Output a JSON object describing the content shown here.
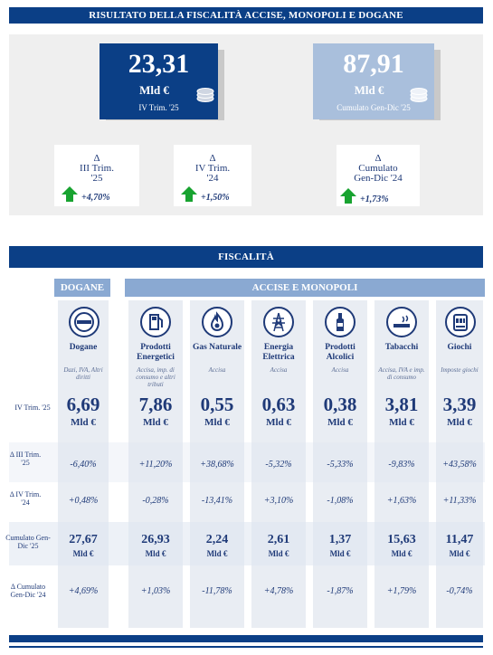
{
  "top_banner": "RISULTATO DELLA FISCALITÀ ACCISE, MONOPOLI E DOGANE",
  "card_quarter": {
    "value": "23,31",
    "unit": "Mld €",
    "period": "IV Trim. '25"
  },
  "card_cumulative": {
    "value": "87,91",
    "unit": "Mld €",
    "period": "Cumulato Gen-Dic '25"
  },
  "deltas": [
    {
      "symbol": "Δ",
      "label": "III Trim. '25",
      "value": "+4,70%"
    },
    {
      "symbol": "Δ",
      "label": "IV Trim. '24",
      "value": "+1,50%"
    },
    {
      "symbol": "Δ",
      "label": "Cumulato Gen-Dic '24",
      "value": "+1,73%"
    }
  ],
  "fiscalita_banner": "FISCALITÀ",
  "tab_dogane": "DOGANE",
  "tab_accise": "ACCISE E MONOPOLI",
  "row_labels": {
    "r1": "IV Trim. '25",
    "r2": "Δ III Trim. '25",
    "r3": "Δ IV Trim. '24",
    "r4": "Cumulato Gen-Dic '25",
    "r5": "Δ Cumulato Gen-Dic '24"
  },
  "unit": "Mld €",
  "columns": [
    {
      "name": "Dogane",
      "sub": "Dazi, IVA, Altri diritti",
      "icon": "customs-seal-icon",
      "value": "6,69",
      "d_q": "-6,40%",
      "d_y": "+0,48%",
      "cum": "27,67",
      "d_cum": "+4,69%"
    },
    {
      "name": "Prodotti Energetici",
      "sub": "Accisa, imp. di consumo e altri tributi",
      "icon": "fuel-pump-icon",
      "value": "7,86",
      "d_q": "+11,20%",
      "d_y": "-0,28%",
      "cum": "26,93",
      "d_cum": "+1,03%"
    },
    {
      "name": "Gas Naturale",
      "sub": "Accisa",
      "icon": "gas-flame-icon",
      "value": "0,55",
      "d_q": "+38,68%",
      "d_y": "-13,41%",
      "cum": "2,24",
      "d_cum": "-11,78%"
    },
    {
      "name": "Energia Elettrica",
      "sub": "Accisa",
      "icon": "power-pylon-icon",
      "value": "0,63",
      "d_q": "-5,32%",
      "d_y": "+3,10%",
      "cum": "2,61",
      "d_cum": "+4,78%"
    },
    {
      "name": "Prodotti Alcolici",
      "sub": "Accisa",
      "icon": "bottle-icon",
      "value": "0,38",
      "d_q": "-5,33%",
      "d_y": "-1,08%",
      "cum": "1,37",
      "d_cum": "-1,87%"
    },
    {
      "name": "Tabacchi",
      "sub": "Accisa, IVA e imp. di consumo",
      "icon": "cigarette-icon",
      "value": "3,81",
      "d_q": "-9,83%",
      "d_y": "+1,63%",
      "cum": "15,63",
      "d_cum": "+1,79%"
    },
    {
      "name": "Giochi",
      "sub": "Imposte giochi",
      "icon": "slot-machine-icon",
      "value": "3,39",
      "d_q": "+43,58%",
      "d_y": "+11,33%",
      "cum": "11,47",
      "d_cum": "-0,74%"
    }
  ]
}
